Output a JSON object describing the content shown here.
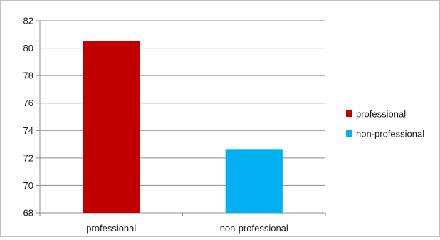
{
  "chart_data": {
    "type": "bar",
    "title": "",
    "xlabel": "",
    "ylabel": "",
    "categories": [
      "professional",
      "non-professional"
    ],
    "values": [
      80.5,
      72.65
    ],
    "colors": [
      "#c00000",
      "#00b0f0"
    ],
    "ylim": [
      68,
      82
    ],
    "yticks": [
      68,
      70,
      72,
      74,
      76,
      78,
      80,
      82
    ],
    "grid": true,
    "legend": {
      "placement": "right",
      "entries": [
        {
          "label": "professional",
          "color": "#c00000"
        },
        {
          "label": "non-professional",
          "color": "#00b0f0"
        }
      ]
    }
  }
}
